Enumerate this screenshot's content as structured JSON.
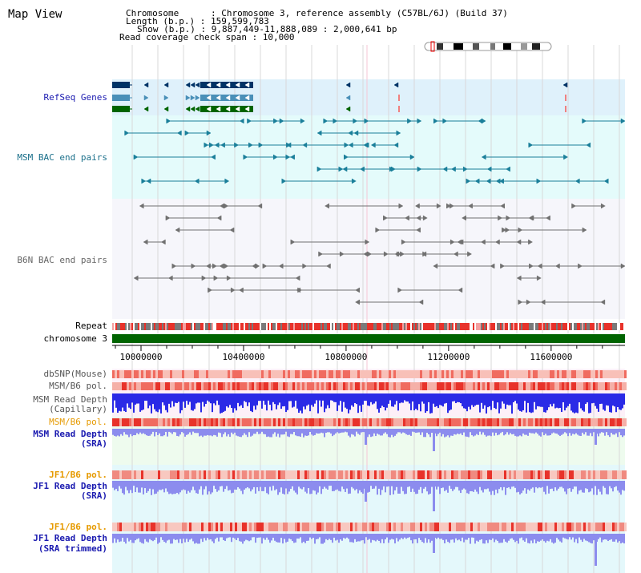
{
  "title": "Map View",
  "header": {
    "chromosome": "Chromosome      : Chromosome 3, reference assembly (C57BL/6J) (Build 37)",
    "length": "Length (b.p.) : 159,599,783",
    "show": "Show (b.p.) : 9,887,449-11,888,089 : 2,000,641 bp",
    "span": "Read coverage check span : 10,000"
  },
  "tracks": {
    "refseq": "RefSeq Genes",
    "msm_bac": "MSM BAC end pairs",
    "b6n_bac": "B6N BAC end pairs",
    "repeat": "Repeat",
    "chromosome": "chromosome 3",
    "dbsnp": "dbSNP(Mouse)",
    "msm_b6_pol_1": "MSM/B6 pol.",
    "msm_depth_cap_1": "MSM Read Depth",
    "msm_depth_cap_2": "(Capillary)",
    "msm_b6_pol_2": "MSM/B6 pol.",
    "msm_depth_sra_1": "MSM Read Depth",
    "msm_depth_sra_2": "(SRA)",
    "jf1_b6_pol_1": "JF1/B6 pol.",
    "jf1_depth_sra_1": "JF1 Read Depth",
    "jf1_depth_sra_2": "(SRA)",
    "jf1_b6_pol_2": "JF1/B6 pol.",
    "jf1_depth_trim_1": "JF1 Read Depth",
    "jf1_depth_trim_2": "(SRA trimmed)"
  },
  "axis": {
    "ticks": [
      "10000000",
      "10400000",
      "10800000",
      "11200000",
      "11600000"
    ],
    "tick_positions_bp": [
      10000000,
      10400000,
      10800000,
      11200000,
      11600000
    ],
    "range_bp": [
      9887449,
      11888089
    ]
  },
  "colors": {
    "refseq_bg": "#dff1fb",
    "msm_bg": "#e4fbfb",
    "b6n_bg": "#f6f6fb",
    "chromosome": "#006400",
    "refseq_dark": "#003366",
    "refseq_mid": "#4a90b8",
    "refseq_green": "#006400",
    "msm_bac": "#1a7f9a",
    "b6n_bac": "#707070",
    "depth_capillary": "#2a2ae6",
    "depth_sra": "#8c8cee",
    "pol_red": "#e8322a",
    "label_blue": "#1a1ab0",
    "label_orange": "#e69a00",
    "label_teal": "#1a6f8a"
  }
}
